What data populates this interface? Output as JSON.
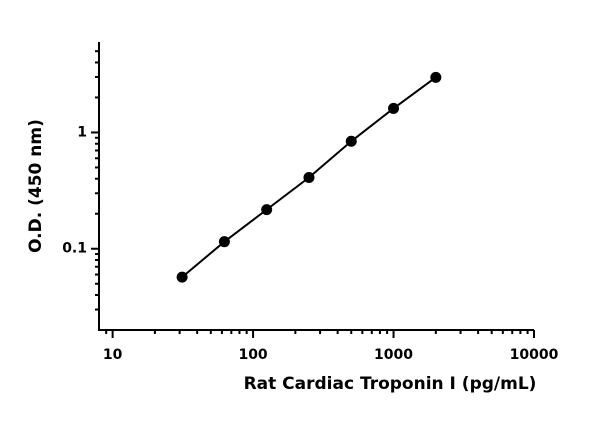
{
  "chart_data": {
    "type": "scatter",
    "x_label": "Rat Cardiac Troponin I (pg/mL)",
    "y_label": "O.D. (450 nm)",
    "x": [
      31.25,
      62.5,
      125,
      250,
      500,
      1000,
      2000
    ],
    "series": [
      {
        "color": "#000000",
        "values": [
          0.057,
          0.115,
          0.217,
          0.41,
          0.84,
          1.61,
          2.98
        ]
      }
    ],
    "xlim": [
      8,
      10000
    ],
    "ylim": [
      0.02,
      6
    ],
    "xticks": [
      10,
      100,
      1000,
      10000
    ],
    "yticks": [
      0.1,
      1
    ],
    "log_x": true,
    "log_y": true,
    "fit_line": true,
    "minor_ticks": true
  }
}
